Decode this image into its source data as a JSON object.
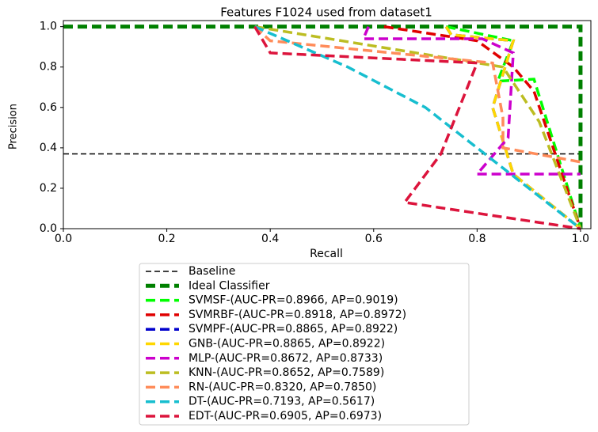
{
  "chart_data": {
    "type": "line",
    "title": "Features F1024 used from dataset1",
    "xlabel": "Recall",
    "ylabel": "Precision",
    "xlim": [
      0,
      1.02
    ],
    "ylim": [
      0,
      1.03
    ],
    "xticks": [
      {
        "value": 0,
        "label": "0.0"
      },
      0.2,
      0.4,
      0.6,
      0.8,
      {
        "value": 1,
        "label": "1.0"
      }
    ],
    "yticks": [
      {
        "value": 0,
        "label": "0.0"
      },
      0.2,
      0.4,
      0.6,
      0.8,
      {
        "value": 1,
        "label": "1.0"
      }
    ],
    "legend": "below",
    "series": [
      {
        "name": "Baseline",
        "color": "#000000",
        "linewidth": 1.5,
        "x": [
          0,
          1
        ],
        "values": [
          0.37,
          0.37
        ]
      },
      {
        "name": "Ideal Classifier",
        "color": "#008000",
        "linewidth": 5,
        "x": [
          0,
          1,
          1
        ],
        "values": [
          1,
          1,
          0
        ]
      },
      {
        "name": "SVMSF-(AUC-PR=0.8966, AP=0.9019)",
        "color": "#00ff00",
        "linewidth": 3.5,
        "x": [
          0.74,
          0.87,
          0.84,
          0.91,
          1
        ],
        "values": [
          1,
          0.93,
          0.73,
          0.74,
          0
        ]
      },
      {
        "name": "SVMRBF-(AUC-PR=0.8918, AP=0.8972)",
        "color": "#e00000",
        "linewidth": 3.5,
        "x": [
          0.62,
          0.8,
          0.87,
          0.91,
          1
        ],
        "values": [
          1,
          0.93,
          0.8,
          0.68,
          0
        ]
      },
      {
        "name": "SVMPF-(AUC-PR=0.8865, AP=0.8922)",
        "color": "#0000cc",
        "linewidth": 3.5,
        "x": [
          0.74,
          0.75,
          0.87,
          0.83,
          0.87,
          1
        ],
        "values": [
          1,
          0.96,
          0.93,
          0.6,
          0.27,
          0
        ]
      },
      {
        "name": "GNB-(AUC-PR=0.8865, AP=0.8922)",
        "color": "#ffd700",
        "linewidth": 3.5,
        "x": [
          0.74,
          0.75,
          0.87,
          0.83,
          0.87,
          1
        ],
        "values": [
          1,
          0.96,
          0.93,
          0.6,
          0.27,
          0
        ]
      },
      {
        "name": "MLP-(AUC-PR=0.8672, AP=0.8733)",
        "color": "#cc00cc",
        "linewidth": 3.5,
        "x": [
          0.59,
          0.58,
          0.81,
          0.87,
          0.86,
          0.8,
          1
        ],
        "values": [
          1,
          0.94,
          0.94,
          0.87,
          0.45,
          0.27,
          0.27
        ]
      },
      {
        "name": "KNN-(AUC-PR=0.8652, AP=0.7589)",
        "color": "#bcbd22",
        "linewidth": 3.5,
        "x": [
          0.37,
          0.85,
          0.92,
          1
        ],
        "values": [
          1,
          0.8,
          0.53,
          0
        ]
      },
      {
        "name": "RN-(AUC-PR=0.8320, AP=0.7850)",
        "color": "#ff8c5a",
        "linewidth": 3.5,
        "x": [
          0.37,
          0.4,
          0.83,
          0.85,
          0.85,
          1
        ],
        "values": [
          1,
          0.93,
          0.82,
          0.55,
          0.4,
          0.33
        ]
      },
      {
        "name": "DT-(AUC-PR=0.7193, AP=0.5617)",
        "color": "#17becf",
        "linewidth": 3.5,
        "x": [
          0.37,
          0.55,
          0.7,
          1
        ],
        "values": [
          1,
          0.8,
          0.6,
          0
        ]
      },
      {
        "name": "EDT-(AUC-PR=0.6905, AP=0.6973)",
        "color": "#dc143c",
        "linewidth": 3.5,
        "x": [
          0.37,
          0.4,
          0.8,
          0.73,
          0.66,
          1
        ],
        "values": [
          1,
          0.87,
          0.82,
          0.37,
          0.13,
          0
        ]
      }
    ]
  }
}
